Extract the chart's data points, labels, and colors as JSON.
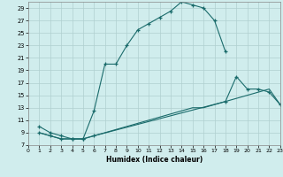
{
  "xlabel": "Humidex (Indice chaleur)",
  "bg_color": "#d0eded",
  "grid_color": "#b0d0d0",
  "line_color": "#1a6b6b",
  "xlim": [
    0,
    23
  ],
  "ylim": [
    7,
    30
  ],
  "xticks": [
    0,
    1,
    2,
    3,
    4,
    5,
    6,
    7,
    8,
    9,
    10,
    11,
    12,
    13,
    14,
    15,
    16,
    17,
    18,
    19,
    20,
    21,
    22,
    23
  ],
  "yticks": [
    7,
    9,
    11,
    13,
    15,
    17,
    19,
    21,
    23,
    25,
    27,
    29
  ],
  "line1_x": [
    1,
    2,
    3,
    4,
    5,
    6,
    7,
    8,
    9,
    10,
    11,
    12,
    13,
    14,
    15,
    16,
    17,
    18
  ],
  "line1_y": [
    10,
    9,
    8.5,
    8,
    8,
    12.5,
    20,
    20,
    23,
    25.5,
    26.5,
    27.5,
    28.5,
    30,
    29.5,
    29,
    27,
    22
  ],
  "line2_x": [
    1,
    2,
    3,
    4,
    5,
    6,
    18,
    19,
    20,
    21,
    22,
    23
  ],
  "line2_y": [
    9,
    8.5,
    8,
    8,
    8,
    8.5,
    14,
    18,
    16,
    16,
    15.5,
    13.5
  ],
  "line3_x": [
    1,
    2,
    3,
    4,
    5,
    6,
    7,
    8,
    9,
    10,
    11,
    12,
    13,
    14,
    15,
    16,
    17,
    18,
    19,
    20,
    21,
    22,
    23
  ],
  "line3_y": [
    9,
    8.5,
    8,
    8,
    8,
    8.5,
    9,
    9.5,
    10,
    10.5,
    11,
    11.5,
    12,
    12.5,
    13,
    13,
    13.5,
    14,
    14.5,
    15,
    15.5,
    16,
    13.5
  ]
}
